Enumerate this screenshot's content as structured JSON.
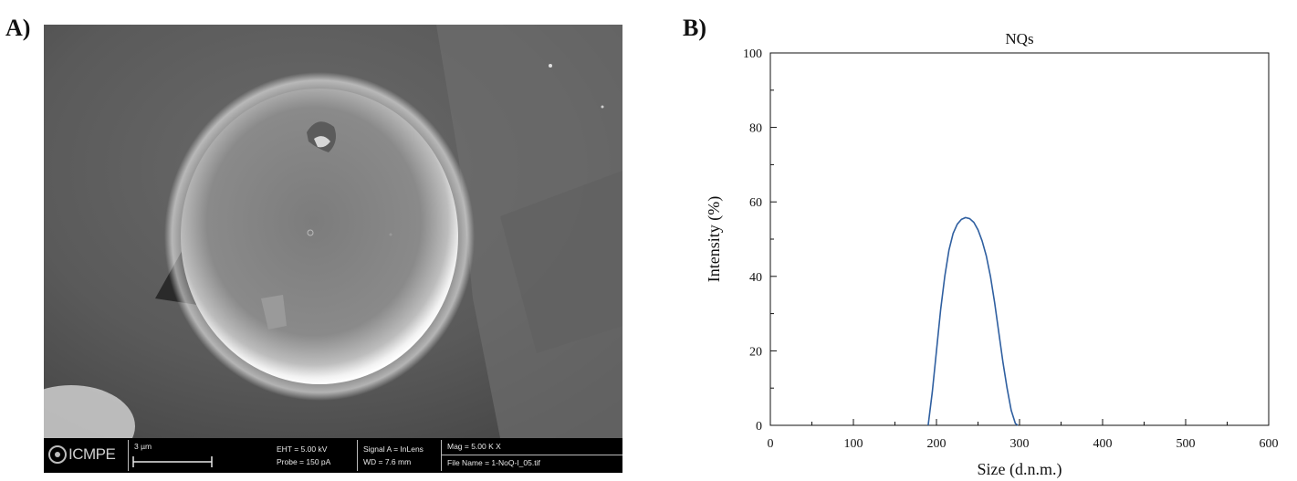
{
  "panels": {
    "a_label": "A)",
    "b_label": "B)"
  },
  "sem": {
    "logo": "ICMPE",
    "scale_bar": "3 µm",
    "eht": "EHT = 5.00 kV",
    "probe": "Probe =   150 pA",
    "signal_a": "Signal A = InLens",
    "wd": "WD =  7.6 mm",
    "mag": "Mag =    5.00 K X",
    "file_name": "File Name = 1-NoQ-I_05.tif"
  },
  "chart_data": {
    "type": "line",
    "title": "NQs",
    "xlabel": "Size (d.n.m.)",
    "ylabel": "Intensity (%)",
    "xlim": [
      0,
      600
    ],
    "ylim": [
      0,
      100
    ],
    "xticks": [
      0,
      100,
      200,
      300,
      400,
      500,
      600
    ],
    "yticks": [
      0,
      20,
      40,
      60,
      80,
      100
    ],
    "grid": false,
    "series": [
      {
        "color": "#2f5fa0",
        "x": [
          190,
          195,
          200,
          205,
          210,
          215,
          220,
          225,
          230,
          235,
          240,
          245,
          250,
          255,
          260,
          265,
          270,
          275,
          280,
          285,
          290,
          295,
          298
        ],
        "y": [
          0,
          9,
          20,
          31,
          40,
          47,
          51.5,
          54,
          55.3,
          55.8,
          55.5,
          54.5,
          52.5,
          49.5,
          45.5,
          40,
          33,
          25,
          17,
          10,
          4,
          0.5,
          0
        ]
      }
    ]
  }
}
